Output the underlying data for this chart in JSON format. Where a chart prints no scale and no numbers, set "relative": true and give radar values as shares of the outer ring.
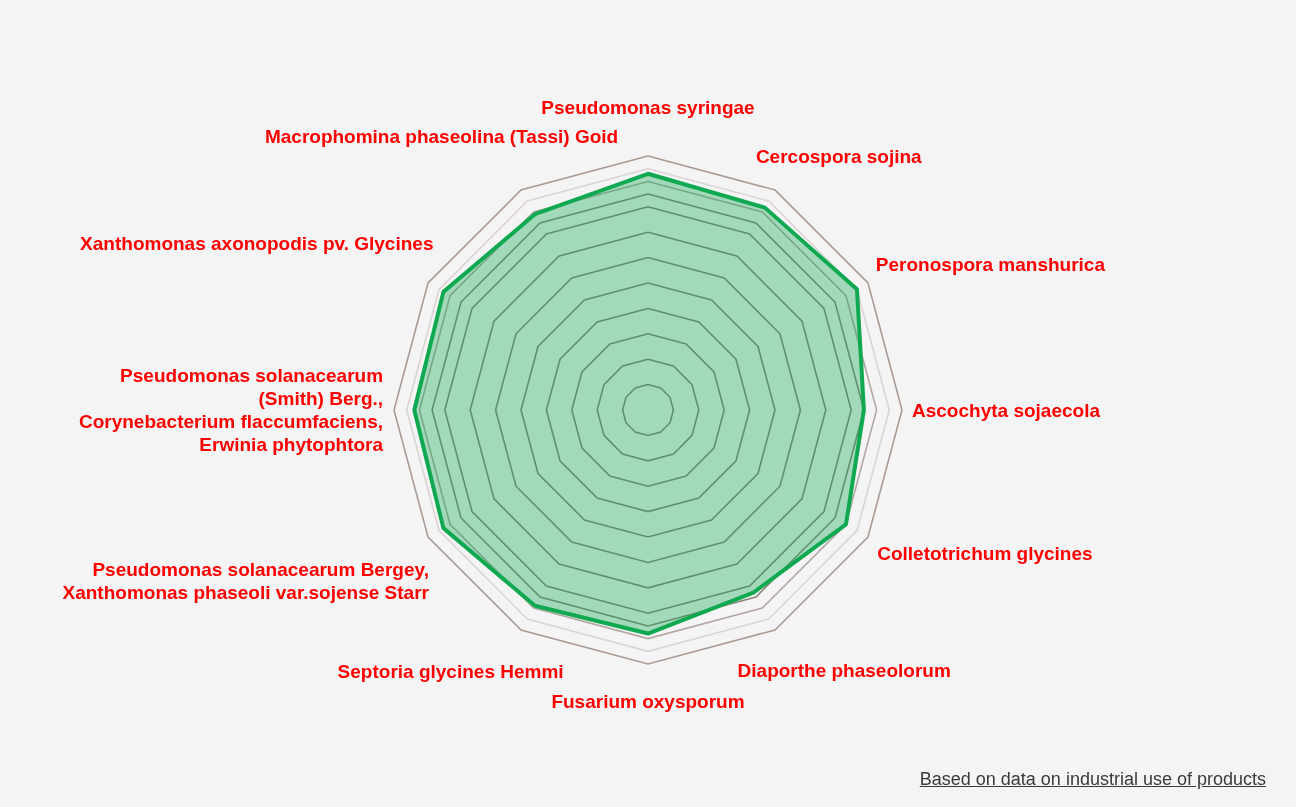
{
  "chart_data": {
    "type": "radar",
    "categories": [
      "Pseudomonas syringae",
      "Cercospora sojina",
      "Peronospora manshurica",
      "Ascochyta sojaecola",
      "Colletotrichum glycines",
      "Diaporthe phaseolorum",
      "Fusarium oxysporum",
      "Septoria glycines Hemmi",
      "Pseudomonas solanacearum Bergey,\nXanthomonas phaseoli var.sojense Starr",
      "Pseudomonas solanacearum\n(Smith) Berg.,\nCorynebacterium flaccumfaciens,\nErwinia phytophtora",
      "Xanthomonas axonopodis pv. Glycines",
      "Macrophomina phaseolina (Tassi) Goid"
    ],
    "series": [
      {
        "color": "#10a952",
        "values": [
          0.93,
          0.92,
          0.95,
          0.85,
          0.9,
          0.83,
          0.88,
          0.89,
          0.93,
          0.92,
          0.93,
          0.89
        ]
      }
    ],
    "relative": true,
    "grid": true,
    "marker": "none",
    "line_style": "solid",
    "annotations": [
      "Based on data on industrial use of products"
    ]
  }
}
